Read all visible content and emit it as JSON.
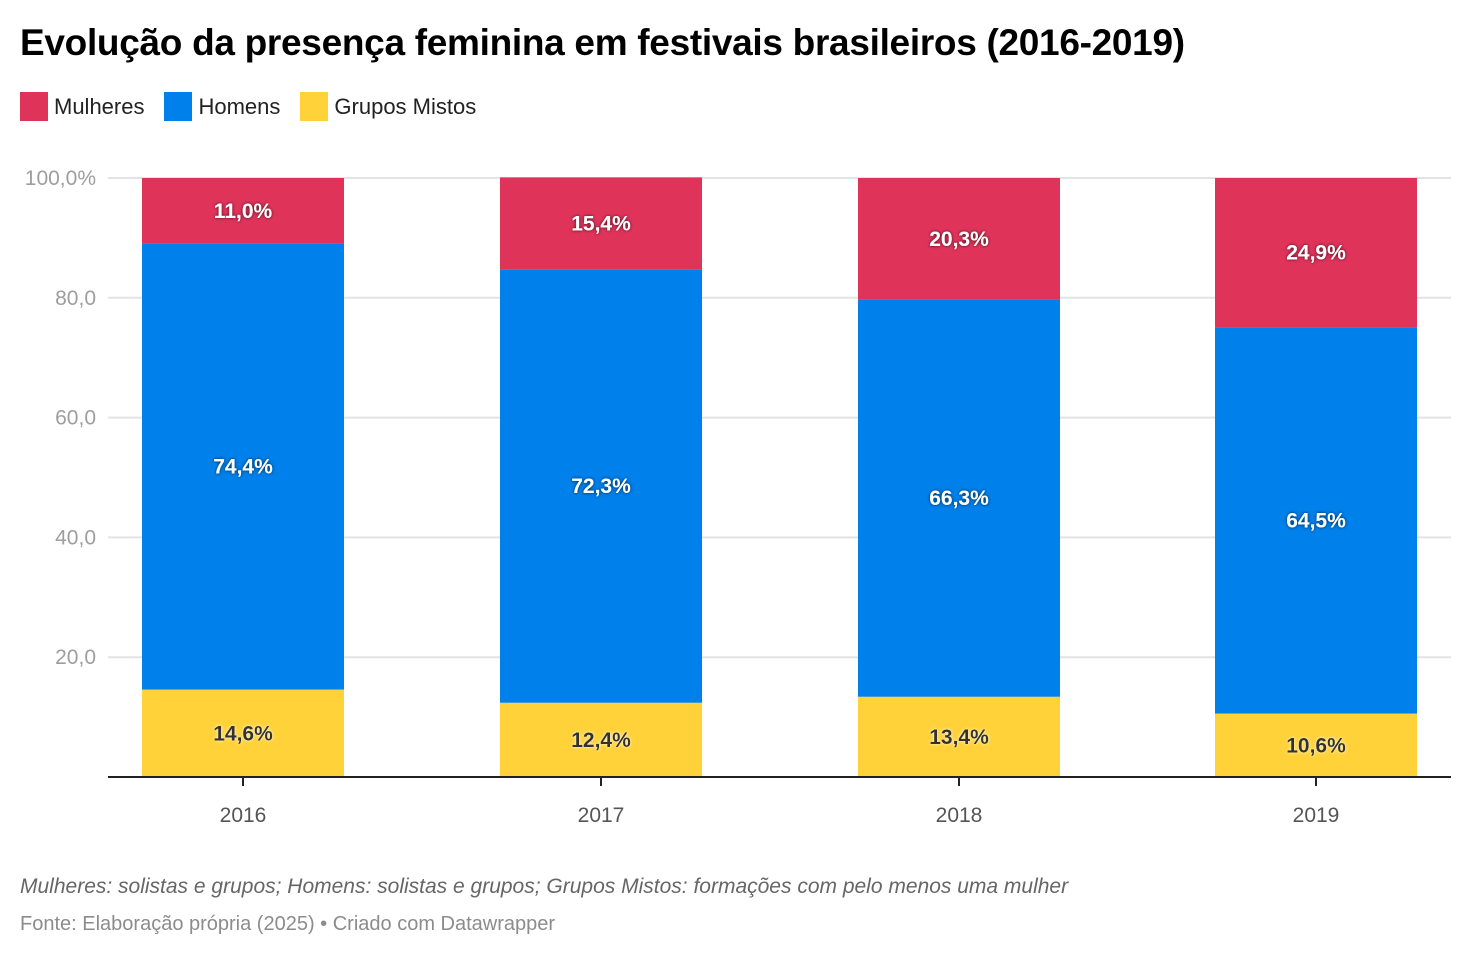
{
  "chart_data": {
    "type": "bar",
    "stacked": true,
    "title": "Evolução da presença feminina em festivais brasileiros (2016-2019)",
    "xlabel": "",
    "ylabel": "",
    "ylim": [
      0,
      100
    ],
    "yticks": [
      {
        "value": 20,
        "label": "20,0"
      },
      {
        "value": 40,
        "label": "40,0"
      },
      {
        "value": 60,
        "label": "60,0"
      },
      {
        "value": 80,
        "label": "80,0"
      },
      {
        "value": 100,
        "label": "100,0%"
      }
    ],
    "grid": true,
    "legend_position": "top-left",
    "categories": [
      "2016",
      "2017",
      "2018",
      "2019"
    ],
    "series": [
      {
        "name": "Grupos Mistos",
        "color": "#ffd23a",
        "label_color": "#333333",
        "values": [
          14.6,
          12.4,
          13.4,
          10.6
        ],
        "labels": [
          "14,6%",
          "12,4%",
          "13,4%",
          "10,6%"
        ]
      },
      {
        "name": "Homens",
        "color": "#0080eb",
        "label_color": "#ffffff",
        "values": [
          74.4,
          72.3,
          66.3,
          64.5
        ],
        "labels": [
          "74,4%",
          "72,3%",
          "66,3%",
          "64,5%"
        ]
      },
      {
        "name": "Mulheres",
        "color": "#e0335a",
        "label_color": "#ffffff",
        "values": [
          11.0,
          15.4,
          20.3,
          24.9
        ],
        "labels": [
          "11,0%",
          "15,4%",
          "20,3%",
          "24,9%"
        ]
      }
    ],
    "legend": [
      {
        "name": "Mulheres",
        "color": "#e0335a"
      },
      {
        "name": "Homens",
        "color": "#0080eb"
      },
      {
        "name": "Grupos Mistos",
        "color": "#ffd23a"
      }
    ],
    "notes": "Mulheres: solistas e grupos; Homens: solistas e grupos; Grupos Mistos: formações com pelo menos uma mulher",
    "source": "Fonte: Elaboração própria (2025) • Criado com Datawrapper"
  }
}
